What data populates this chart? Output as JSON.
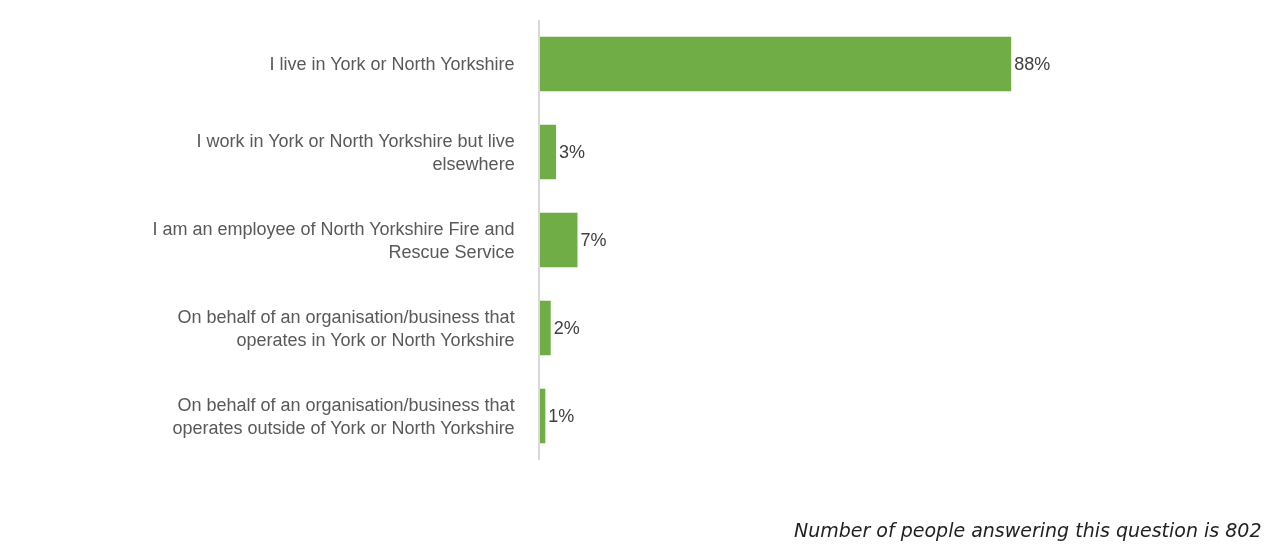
{
  "chart_data": {
    "type": "bar",
    "orientation": "horizontal",
    "categories": [
      "I live in York or North Yorkshire",
      "I work in York or North Yorkshire but live elsewhere",
      "I am an employee of North Yorkshire Fire and Rescue Service",
      "On behalf of an organisation/business that operates in York or North Yorkshire",
      "On behalf of an organisation/business that operates outside of York or North Yorkshire"
    ],
    "values": [
      88,
      3,
      7,
      2,
      1
    ],
    "value_labels": [
      "88%",
      "3%",
      "7%",
      "2%",
      "1%"
    ],
    "color": "#70ad47",
    "annotations": [
      "Number of people answering this question is 802"
    ]
  }
}
